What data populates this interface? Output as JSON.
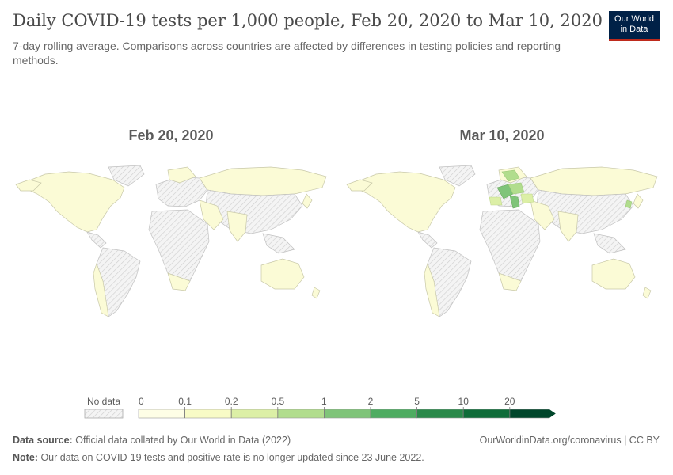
{
  "header": {
    "title": "Daily COVID-19 tests per 1,000 people, Feb 20, 2020 to Mar 10, 2020",
    "subtitle": "7-day rolling average. Comparisons across countries are affected by differences in testing policies and reporting methods.",
    "logo_line1": "Our World",
    "logo_line2": "in Data"
  },
  "maps": [
    {
      "date_label": "Feb 20, 2020"
    },
    {
      "date_label": "Mar 10, 2020"
    }
  ],
  "legend": {
    "no_data_label": "No data",
    "bins": [
      "0",
      "0.1",
      "0.2",
      "0.5",
      "1",
      "2",
      "5",
      "10",
      "20"
    ],
    "colors": [
      "#fefee6",
      "#f8fbc6",
      "#dcefa6",
      "#b1dd8d",
      "#7fc479",
      "#4eac61",
      "#2a894a",
      "#0f6c39",
      "#00462b"
    ]
  },
  "footer": {
    "source_label": "Data source:",
    "source_text": "Official data collated by Our World in Data (2022)",
    "url_text": "OurWorldinData.org/coronavirus | CC BY",
    "note_label": "Note:",
    "note_text": "Our data on COVID-19 tests and positive rate is no longer updated since 23 June 2022."
  },
  "colors": {
    "no_data_fill": "#f0f0f0",
    "low_value_fill": "#fbfbd6",
    "land_stroke": "#bdbdbd"
  }
}
